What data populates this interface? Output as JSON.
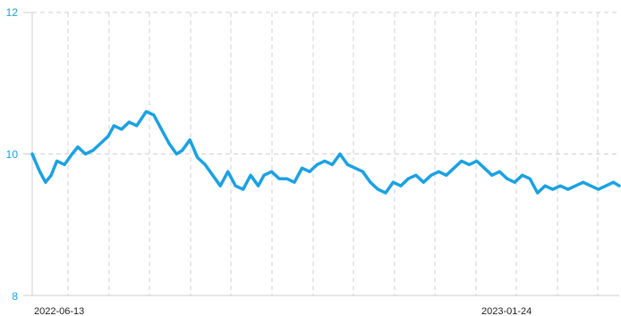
{
  "chart_data": {
    "type": "line",
    "title": "",
    "xlabel": "",
    "ylabel": "",
    "x_tick_labels": [
      "2022-06-13",
      "2023-01-24"
    ],
    "y_tick_labels": [
      "8",
      "10",
      "12"
    ],
    "ylim": [
      8,
      12
    ],
    "x_range": [
      "2022-05-31",
      "2023-04-05"
    ],
    "grid": true,
    "line_color": "#1ba1e2",
    "series": [
      {
        "x": [
          "2022-05-31",
          "2022-06-04",
          "2022-06-07",
          "2022-06-10",
          "2022-06-13",
          "2022-06-17",
          "2022-06-21",
          "2022-06-24",
          "2022-06-28",
          "2022-07-02",
          "2022-07-06",
          "2022-07-10",
          "2022-07-13",
          "2022-07-17",
          "2022-07-21",
          "2022-07-25",
          "2022-07-30",
          "2022-08-03",
          "2022-08-07",
          "2022-08-11",
          "2022-08-15",
          "2022-08-18",
          "2022-08-22",
          "2022-08-26",
          "2022-08-30",
          "2022-09-03",
          "2022-09-07",
          "2022-09-11",
          "2022-09-15",
          "2022-09-19",
          "2022-09-23",
          "2022-09-27",
          "2022-09-30",
          "2022-10-04",
          "2022-10-08",
          "2022-10-12",
          "2022-10-16",
          "2022-10-20",
          "2022-10-24",
          "2022-10-28",
          "2022-11-01",
          "2022-11-05",
          "2022-11-09",
          "2022-11-13",
          "2022-11-17",
          "2022-11-21",
          "2022-11-25",
          "2022-11-29",
          "2022-12-03",
          "2022-12-07",
          "2022-12-11",
          "2022-12-15",
          "2022-12-19",
          "2022-12-23",
          "2022-12-27",
          "2022-12-31",
          "2023-01-04",
          "2023-01-08",
          "2023-01-12",
          "2023-01-16",
          "2023-01-20",
          "2023-01-24",
          "2023-01-28",
          "2023-02-01",
          "2023-02-05",
          "2023-02-09",
          "2023-02-13",
          "2023-02-17",
          "2023-02-21",
          "2023-02-25",
          "2023-03-01",
          "2023-03-05",
          "2023-03-09",
          "2023-03-13",
          "2023-03-17",
          "2023-03-21",
          "2023-03-25",
          "2023-03-29",
          "2023-04-02",
          "2023-04-05"
        ],
        "values": [
          10.0,
          9.75,
          9.6,
          9.7,
          9.9,
          9.85,
          10.0,
          10.1,
          10.0,
          10.05,
          10.15,
          10.25,
          10.4,
          10.35,
          10.45,
          10.4,
          10.6,
          10.55,
          10.35,
          10.15,
          10.0,
          10.05,
          10.2,
          9.95,
          9.85,
          9.7,
          9.55,
          9.75,
          9.55,
          9.5,
          9.7,
          9.55,
          9.7,
          9.75,
          9.65,
          9.65,
          9.6,
          9.8,
          9.75,
          9.85,
          9.9,
          9.85,
          10.0,
          9.85,
          9.8,
          9.75,
          9.6,
          9.5,
          9.45,
          9.6,
          9.55,
          9.65,
          9.7,
          9.6,
          9.7,
          9.75,
          9.7,
          9.8,
          9.9,
          9.85,
          9.9,
          9.8,
          9.7,
          9.75,
          9.65,
          9.6,
          9.7,
          9.65,
          9.45,
          9.55,
          9.5,
          9.55,
          9.5,
          9.55,
          9.6,
          9.55,
          9.5,
          9.55,
          9.6,
          9.55
        ]
      }
    ]
  }
}
